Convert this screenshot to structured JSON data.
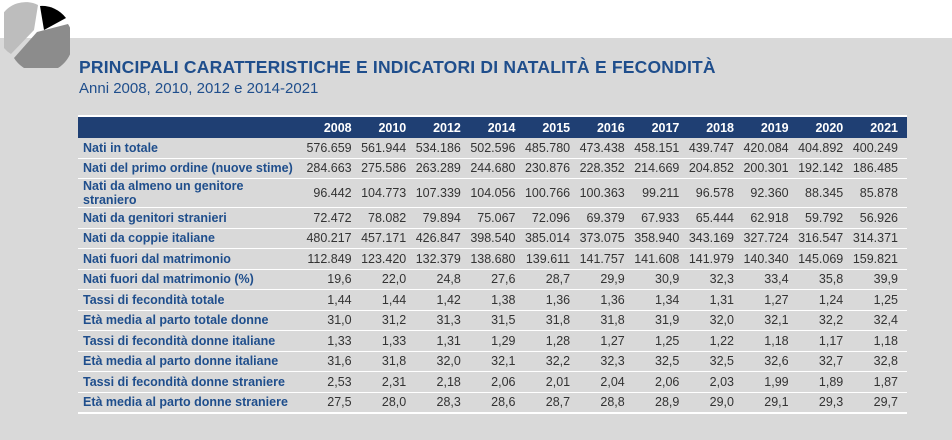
{
  "title": "PRINCIPALI CARATTERISTICHE E INDICATORI DI NATALITÀ E FECONDITÀ",
  "subtitle": "Anni 2008, 2010, 2012 e 2014-2021",
  "colors": {
    "accent": "#1f4e8c",
    "header_bg": "#1f3f73",
    "background": "#d9d9d9"
  },
  "table": {
    "headers": [
      "",
      "2008",
      "2010",
      "2012",
      "2014",
      "2015",
      "2016",
      "2017",
      "2018",
      "2019",
      "2020",
      "2021"
    ],
    "rows": [
      {
        "label": "Nati in totale",
        "values": [
          "576.659",
          "561.944",
          "534.186",
          "502.596",
          "485.780",
          "473.438",
          "458.151",
          "439.747",
          "420.084",
          "404.892",
          "400.249"
        ]
      },
      {
        "label": "Nati del primo ordine (nuove stime)",
        "values": [
          "284.663",
          "275.586",
          "263.289",
          "244.680",
          "230.876",
          "228.352",
          "214.669",
          "204.852",
          "200.301",
          "192.142",
          "186.485"
        ]
      },
      {
        "label": "Nati da almeno un genitore straniero",
        "values": [
          "96.442",
          "104.773",
          "107.339",
          "104.056",
          "100.766",
          "100.363",
          "99.211",
          "96.578",
          "92.360",
          "88.345",
          "85.878"
        ]
      },
      {
        "label": "Nati da genitori stranieri",
        "values": [
          "72.472",
          "78.082",
          "79.894",
          "75.067",
          "72.096",
          "69.379",
          "67.933",
          "65.444",
          "62.918",
          "59.792",
          "56.926"
        ]
      },
      {
        "label": "Nati da coppie italiane",
        "values": [
          "480.217",
          "457.171",
          "426.847",
          "398.540",
          "385.014",
          "373.075",
          "358.940",
          "343.169",
          "327.724",
          "316.547",
          "314.371"
        ]
      },
      {
        "label": "Nati fuori dal matrimonio",
        "values": [
          "112.849",
          "123.420",
          "132.379",
          "138.680",
          "139.611",
          "141.757",
          "141.608",
          "141.979",
          "140.340",
          "145.069",
          "159.821"
        ]
      },
      {
        "label": "Nati fuori dal matrimonio (%)",
        "values": [
          "19,6",
          "22,0",
          "24,8",
          "27,6",
          "28,7",
          "29,9",
          "30,9",
          "32,3",
          "33,4",
          "35,8",
          "39,9"
        ]
      },
      {
        "label": "Tassi di fecondità totale",
        "values": [
          "1,44",
          "1,44",
          "1,42",
          "1,38",
          "1,36",
          "1,36",
          "1,34",
          "1,31",
          "1,27",
          "1,24",
          "1,25"
        ]
      },
      {
        "label": "Età media al parto totale donne",
        "values": [
          "31,0",
          "31,2",
          "31,3",
          "31,5",
          "31,8",
          "31,8",
          "31,9",
          "32,0",
          "32,1",
          "32,2",
          "32,4"
        ]
      },
      {
        "label": "Tassi di fecondità donne italiane",
        "values": [
          "1,33",
          "1,33",
          "1,31",
          "1,29",
          "1,28",
          "1,27",
          "1,25",
          "1,22",
          "1,18",
          "1,17",
          "1,18"
        ]
      },
      {
        "label": "Età media al parto donne italiane",
        "values": [
          "31,6",
          "31,8",
          "32,0",
          "32,1",
          "32,2",
          "32,3",
          "32,5",
          "32,5",
          "32,6",
          "32,7",
          "32,8"
        ]
      },
      {
        "label": "Tassi di fecondità donne straniere",
        "values": [
          "2,53",
          "2,31",
          "2,18",
          "2,06",
          "2,01",
          "2,04",
          "2,06",
          "2,03",
          "1,99",
          "1,89",
          "1,87"
        ]
      },
      {
        "label": "Età media al parto donne straniere",
        "values": [
          "27,5",
          "28,0",
          "28,3",
          "28,6",
          "28,7",
          "28,8",
          "28,9",
          "29,0",
          "29,1",
          "29,3",
          "29,7"
        ]
      }
    ]
  }
}
